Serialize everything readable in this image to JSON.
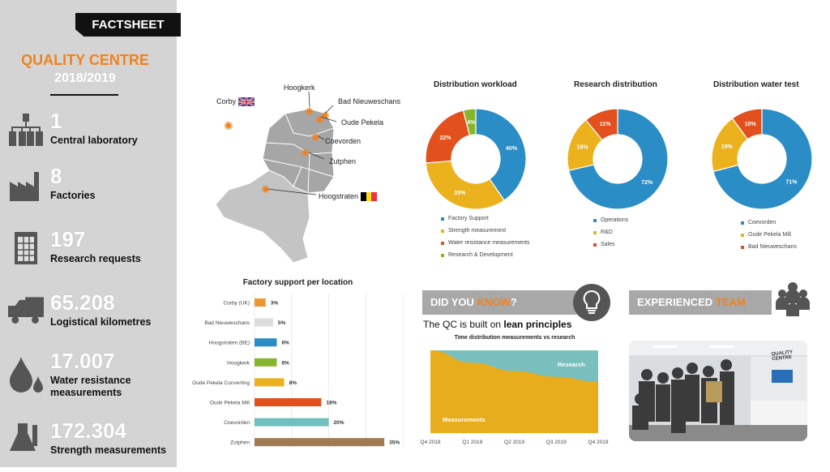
{
  "header": {
    "tag": "FACTSHEET"
  },
  "sidebar": {
    "title": "QUALITY CENTRE",
    "year": "2018/2019",
    "stats": [
      {
        "value": "1",
        "label": "Central laboratory",
        "icon": "laboratory-org-icon"
      },
      {
        "value": "8",
        "label": "Factories",
        "icon": "factory-icon"
      },
      {
        "value": "197",
        "label": "Research requests",
        "icon": "spreadsheet-icon"
      },
      {
        "value": "65.208",
        "label": "Logistical kilometres",
        "icon": "truck-icon"
      },
      {
        "value": "17.007",
        "label": "Water resistance measurements",
        "icon": "water-drop-icon"
      },
      {
        "value": "172.304",
        "label": "Strength measurements",
        "icon": "flask-icon"
      }
    ]
  },
  "map": {
    "locations": [
      "Corby",
      "Hoogkerk",
      "Bad Nieuweschans",
      "Oude Pekela",
      "Coevorden",
      "Zutphen",
      "Hoogstraten"
    ]
  },
  "donuts": [
    {
      "title": "Distribution workload",
      "slices": [
        {
          "name": "Factory Support",
          "value": 40,
          "label": "40%",
          "color": "#2a8dc5"
        },
        {
          "name": "Strength measurement",
          "value": 33,
          "label": "33%",
          "color": "#ecb21e"
        },
        {
          "name": "Water resistance measurements",
          "value": 22,
          "label": "22%",
          "color": "#e1501d"
        },
        {
          "name": "Research & Development",
          "value": 4,
          "label": "4%",
          "color": "#86b52d"
        }
      ]
    },
    {
      "title": "Research distribution",
      "slices": [
        {
          "name": "Operations",
          "value": 72,
          "label": "72%",
          "color": "#2a8dc5"
        },
        {
          "name": "R&D",
          "value": 18,
          "label": "18%",
          "color": "#ecb21e"
        },
        {
          "name": "Sales",
          "value": 11,
          "label": "11%",
          "color": "#e1501d"
        }
      ]
    },
    {
      "title": "Distribution water test",
      "slices": [
        {
          "name": "Coevorden",
          "value": 71,
          "label": "71%",
          "color": "#2a8dc5"
        },
        {
          "name": "Oude Pekela Mill",
          "value": 19,
          "label": "19%",
          "color": "#ecb21e"
        },
        {
          "name": "Bad Nieuweschans",
          "value": 10,
          "label": "10%",
          "color": "#e1501d"
        }
      ]
    }
  ],
  "chart_data": [
    {
      "type": "bar",
      "title": "Factory support per location",
      "categories": [
        "Corby (UK)",
        "Bad Nieuweschans",
        "Hoogstraten (BE)",
        "Hoogkerk",
        "Oude Pekela Converting",
        "Oude Pekela Mill",
        "Coevorden",
        "Zutphen"
      ],
      "values": [
        3,
        5,
        6,
        6,
        8,
        18,
        20,
        35
      ],
      "labels": [
        "3%",
        "5%",
        "6%",
        "6%",
        "8%",
        "18%",
        "20%",
        "35%"
      ],
      "colors": [
        "#f0962e",
        "#dcdcdc",
        "#2a8dc5",
        "#86b52d",
        "#ecb21e",
        "#e1501d",
        "#6fbfbd",
        "#a07a52"
      ],
      "xlim": [
        0,
        40
      ]
    },
    {
      "type": "area",
      "title": "Time distribution measurements vs research",
      "categories": [
        "Q4 2018",
        "Q1 2019",
        "Q2 2019",
        "Q3 2019",
        "Q4 2019"
      ],
      "series": [
        {
          "name": "Measurements",
          "values": [
            100,
            85,
            75,
            68,
            62
          ],
          "color": "#e8ad1c"
        },
        {
          "name": "Research",
          "values": [
            0,
            15,
            25,
            32,
            38
          ],
          "color": "#79bfbd"
        }
      ],
      "ylim": [
        0,
        100
      ]
    }
  ],
  "did_you_know": {
    "prefix": "DID YOU ",
    "highlight": "KNOW",
    "suffix": "?",
    "text_prefix": "The QC is built on ",
    "text_bold": "lean principles"
  },
  "team": {
    "prefix": "EXPERIENCED ",
    "highlight": "TEAM",
    "sign": "QUALITY CENTRE"
  }
}
